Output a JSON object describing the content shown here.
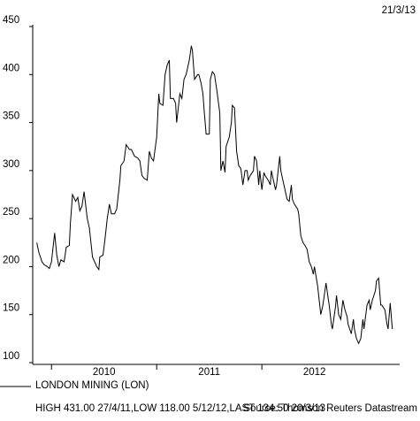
{
  "chart_data": {
    "type": "line",
    "date": "21/3/13",
    "footnote": "HIGH 431.00 27/4/11,LOW 118.00 5/12/12,LAST 134.50 20/3/13",
    "source": "Source: Thomson Reuters Datastream",
    "xlim": [
      2009.83,
      2013.31
    ],
    "xticks": [
      {
        "value": 2010,
        "label": "2010"
      },
      {
        "value": 2011,
        "label": "2011"
      },
      {
        "value": 2012,
        "label": "2012"
      }
    ],
    "ylim": [
      100,
      450
    ],
    "yticks": [
      100,
      150,
      200,
      250,
      300,
      350,
      400,
      450
    ],
    "series": [
      {
        "name": "LONDON MINING (LON)",
        "color": "#000000",
        "x": [
          2009.86,
          2009.88,
          2009.91,
          2009.93,
          2009.96,
          2009.98,
          2010.0,
          2010.03,
          2010.05,
          2010.07,
          2010.09,
          2010.12,
          2010.14,
          2010.17,
          2010.18,
          2010.2,
          2010.23,
          2010.25,
          2010.27,
          2010.29,
          2010.31,
          2010.34,
          2010.36,
          2010.39,
          2010.41,
          2010.43,
          2010.45,
          2010.46,
          2010.49,
          2010.51,
          2010.53,
          2010.55,
          2010.57,
          2010.6,
          2010.62,
          2010.65,
          2010.66,
          2010.69,
          2010.71,
          2010.74,
          2010.76,
          2010.79,
          2010.82,
          2010.84,
          2010.86,
          2010.88,
          2010.91,
          2010.93,
          2010.95,
          2010.97,
          2011.0,
          2011.02,
          2011.03,
          2011.06,
          2011.08,
          2011.1,
          2011.12,
          2011.13,
          2011.16,
          2011.18,
          2011.19,
          2011.22,
          2011.24,
          2011.26,
          2011.28,
          2011.29,
          2011.31,
          2011.33,
          2011.34,
          2011.36,
          2011.39,
          2011.4,
          2011.42,
          2011.44,
          2011.45,
          2011.47,
          2011.5,
          2011.51,
          2011.53,
          2011.55,
          2011.57,
          2011.6,
          2011.61,
          2011.63,
          2011.65,
          2011.66,
          2011.69,
          2011.71,
          2011.72,
          2011.74,
          2011.76,
          2011.78,
          2011.8,
          2011.82,
          2011.84,
          2011.86,
          2011.87,
          2011.89,
          2011.92,
          2011.93,
          2011.95,
          2011.97,
          2011.98,
          2012.0,
          2012.02,
          2012.03,
          2012.06,
          2012.08,
          2012.09,
          2012.11,
          2012.13,
          2012.14,
          2012.17,
          2012.18,
          2012.2,
          2012.22,
          2012.24,
          2012.26,
          2012.28,
          2012.29,
          2012.31,
          2012.34,
          2012.35,
          2012.37,
          2012.39,
          2012.41,
          2012.43,
          2012.45,
          2012.47,
          2012.49,
          2012.5,
          2012.53,
          2012.55,
          2012.56,
          2012.58,
          2012.61,
          2012.62,
          2012.64,
          2012.66,
          2012.67,
          2012.7,
          2012.71,
          2012.73,
          2012.75,
          2012.77,
          2012.79,
          2012.81,
          2012.82,
          2012.85,
          2012.87,
          2012.88,
          2012.9,
          2012.92,
          2012.94,
          2012.96,
          2012.97,
          2013.0,
          2013.02,
          2013.03,
          2013.05,
          2013.08,
          2013.09,
          2013.11,
          2013.13,
          2013.14,
          2013.17,
          2013.19,
          2013.2,
          2013.22,
          2013.24
        ],
        "values": [
          225,
          215,
          205,
          202,
          200,
          198,
          205,
          235,
          212,
          200,
          207,
          205,
          220,
          222,
          245,
          275,
          268,
          272,
          258,
          263,
          278,
          250,
          240,
          210,
          205,
          200,
          197,
          210,
          212,
          230,
          250,
          265,
          255,
          255,
          260,
          290,
          305,
          310,
          327,
          322,
          322,
          315,
          313,
          310,
          295,
          292,
          290,
          320,
          313,
          310,
          335,
          380,
          370,
          368,
          400,
          410,
          415,
          375,
          375,
          370,
          350,
          380,
          375,
          395,
          400,
          405,
          415,
          430,
          425,
          395,
          400,
          400,
          392,
          380,
          365,
          338,
          338,
          395,
          403,
          400,
          385,
          360,
          300,
          310,
          298,
          325,
          335,
          350,
          368,
          365,
          320,
          305,
          302,
          285,
          300,
          300,
          290,
          295,
          300,
          315,
          310,
          285,
          300,
          280,
          298,
          295,
          290,
          285,
          300,
          290,
          280,
          285,
          315,
          300,
          290,
          280,
          270,
          268,
          285,
          270,
          265,
          260,
          255,
          232,
          225,
          222,
          218,
          205,
          200,
          192,
          200,
          180,
          160,
          150,
          160,
          183,
          175,
          160,
          140,
          135,
          158,
          170,
          150,
          145,
          165,
          155,
          148,
          140,
          130,
          145,
          135,
          125,
          120,
          125,
          145,
          135,
          160,
          165,
          155,
          165,
          175,
          185,
          188,
          160,
          160,
          155,
          140,
          135,
          162,
          135
        ]
      }
    ]
  }
}
